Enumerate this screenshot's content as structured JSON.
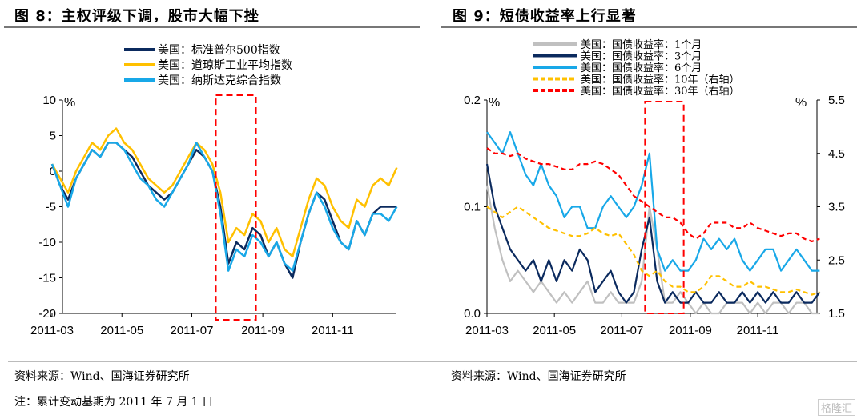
{
  "left_title": "图 8：主权评级下调，股市大幅下挫",
  "right_title": "图 9：短债收益率上行显著",
  "source_left": "资料来源：Wind、国海证券研究所",
  "source_right": "资料来源：Wind、国海证券研究所",
  "note": "注：累计变动基期为 2011 年 7 月 1 日",
  "watermark": "格隆汇",
  "chart_data": [
    {
      "type": "line",
      "title": "主权评级下调，股市大幅下挫",
      "ylabel": "%",
      "ylim": [
        -20,
        10
      ],
      "yticks": [
        10,
        5,
        0,
        -5,
        -10,
        -15,
        -20
      ],
      "xticks": [
        "2011-03",
        "2011-05",
        "2011-07",
        "2011-09",
        "2011-11"
      ],
      "x_start": "2011-03-01",
      "x_step_days": 7,
      "highlight": [
        "2011-07-22",
        "2011-08-26"
      ],
      "series": [
        {
          "name": "美国：标准普尔500指数",
          "color": "#0b2a5e",
          "values": [
            1,
            -2,
            -4,
            -1,
            1,
            3,
            2,
            4,
            4,
            3,
            2,
            0,
            -2,
            -3,
            -4,
            -3,
            -1,
            1,
            3,
            2,
            0,
            -5,
            -13,
            -10,
            -11,
            -8,
            -9,
            -12,
            -10,
            -13,
            -15,
            -10,
            -6,
            -3,
            -4,
            -7,
            -10,
            -11,
            -7,
            -9,
            -6,
            -5,
            -5,
            -5
          ]
        },
        {
          "name": "美国：道琼斯工业平均指数",
          "color": "#ffc000",
          "values": [
            1,
            -1,
            -3,
            0,
            2,
            4,
            3,
            5,
            6,
            4,
            3,
            1,
            -1,
            -2,
            -3,
            -2,
            0,
            2,
            4,
            3,
            1,
            -3,
            -10,
            -8,
            -9,
            -6,
            -7,
            -10,
            -8,
            -11,
            -12,
            -8,
            -4,
            -1,
            -2,
            -5,
            -7,
            -8,
            -4,
            -5,
            -2,
            -1,
            -2,
            0.5
          ]
        },
        {
          "name": "美国：纳斯达克综合指数",
          "color": "#18a8e8",
          "values": [
            1,
            -2,
            -5,
            -1,
            1,
            3,
            2,
            4,
            4,
            3,
            1,
            -1,
            -2,
            -4,
            -5,
            -3,
            -1,
            1,
            4,
            2,
            0,
            -6,
            -14,
            -11,
            -12,
            -9,
            -10,
            -12,
            -10,
            -13,
            -14,
            -10,
            -6,
            -3,
            -5,
            -8,
            -10,
            -11,
            -7,
            -9,
            -6,
            -6,
            -7,
            -5
          ]
        }
      ]
    },
    {
      "type": "line",
      "title": "短债收益率上行显著",
      "ylabel": "%",
      "ylim": [
        0,
        0.2
      ],
      "yticks": [
        "0.2",
        "0.1",
        "0.0"
      ],
      "y2label": "%",
      "y2lim": [
        1.5,
        5.5
      ],
      "y2ticks": [
        "5.5",
        "4.5",
        "3.5",
        "2.5",
        "1.5"
      ],
      "xticks": [
        "2011-03",
        "2011-05",
        "2011-07",
        "2011-09",
        "2011-11"
      ],
      "x_start": "2011-03-01",
      "x_step_days": 7,
      "highlight": [
        "2011-07-22",
        "2011-08-26"
      ],
      "series": [
        {
          "name": "美国：国债收益率：1个月",
          "color": "#c0c0c0",
          "axis": "left",
          "dash": false,
          "values": [
            0.12,
            0.08,
            0.05,
            0.03,
            0.04,
            0.03,
            0.02,
            0.03,
            0.02,
            0.01,
            0.02,
            0.01,
            0.02,
            0.03,
            0.01,
            0.01,
            0.02,
            0.01,
            0.01,
            0.01,
            0.03,
            0.1,
            0.06,
            0.01,
            0.01,
            0.02,
            0.01,
            0,
            0.01,
            0,
            0,
            0.01,
            0.01,
            0.01,
            0,
            0.01,
            0,
            0.01,
            0.01,
            0,
            0.01,
            0.01,
            0,
            0
          ]
        },
        {
          "name": "美国：国债收益率：3个月",
          "color": "#0b2a5e",
          "axis": "left",
          "dash": false,
          "values": [
            0.14,
            0.1,
            0.08,
            0.06,
            0.05,
            0.04,
            0.05,
            0.03,
            0.05,
            0.03,
            0.05,
            0.04,
            0.06,
            0.05,
            0.02,
            0.03,
            0.04,
            0.02,
            0.01,
            0.02,
            0.06,
            0.09,
            0.03,
            0.01,
            0.02,
            0.01,
            0.01,
            0.02,
            0.01,
            0.01,
            0.02,
            0.01,
            0.01,
            0.02,
            0.01,
            0.02,
            0.01,
            0.02,
            0.01,
            0.01,
            0.02,
            0.01,
            0.01,
            0.02
          ]
        },
        {
          "name": "美国：国债收益率：6个月",
          "color": "#18a8e8",
          "axis": "left",
          "dash": false,
          "values": [
            0.17,
            0.16,
            0.15,
            0.17,
            0.15,
            0.13,
            0.12,
            0.14,
            0.12,
            0.11,
            0.09,
            0.1,
            0.1,
            0.08,
            0.08,
            0.1,
            0.11,
            0.1,
            0.09,
            0.1,
            0.12,
            0.15,
            0.06,
            0.04,
            0.05,
            0.04,
            0.04,
            0.05,
            0.07,
            0.06,
            0.07,
            0.06,
            0.07,
            0.05,
            0.04,
            0.05,
            0.06,
            0.06,
            0.04,
            0.05,
            0.06,
            0.05,
            0.04,
            0.04
          ]
        },
        {
          "name": "美国：国债收益率：10年（右轴）",
          "color": "#ffc000",
          "axis": "right",
          "dash": true,
          "values": [
            3.5,
            3.4,
            3.3,
            3.4,
            3.5,
            3.4,
            3.3,
            3.2,
            3.1,
            3.05,
            3.0,
            2.95,
            2.95,
            3.0,
            3.1,
            3.0,
            2.95,
            3.0,
            2.8,
            2.6,
            2.3,
            2.2,
            2.3,
            2.1,
            2.0,
            2.0,
            1.9,
            1.9,
            2.0,
            2.2,
            2.2,
            2.1,
            2.0,
            2.0,
            2.1,
            2.0,
            2.0,
            1.95,
            1.9,
            1.9,
            1.95,
            1.9,
            1.85,
            1.9
          ]
        },
        {
          "name": "美国：国债收益率：30年（右轴）",
          "color": "#ff0000",
          "axis": "right",
          "dash": true,
          "values": [
            4.6,
            4.5,
            4.5,
            4.45,
            4.5,
            4.4,
            4.35,
            4.3,
            4.3,
            4.25,
            4.2,
            4.2,
            4.3,
            4.3,
            4.35,
            4.3,
            4.2,
            4.1,
            3.9,
            3.7,
            3.6,
            3.5,
            3.4,
            3.3,
            3.3,
            3.2,
            3.0,
            2.9,
            3.0,
            3.2,
            3.2,
            3.2,
            3.1,
            3.1,
            3.2,
            3.1,
            3.05,
            3.0,
            2.95,
            3.0,
            3.0,
            2.9,
            2.85,
            2.9
          ]
        }
      ]
    }
  ]
}
